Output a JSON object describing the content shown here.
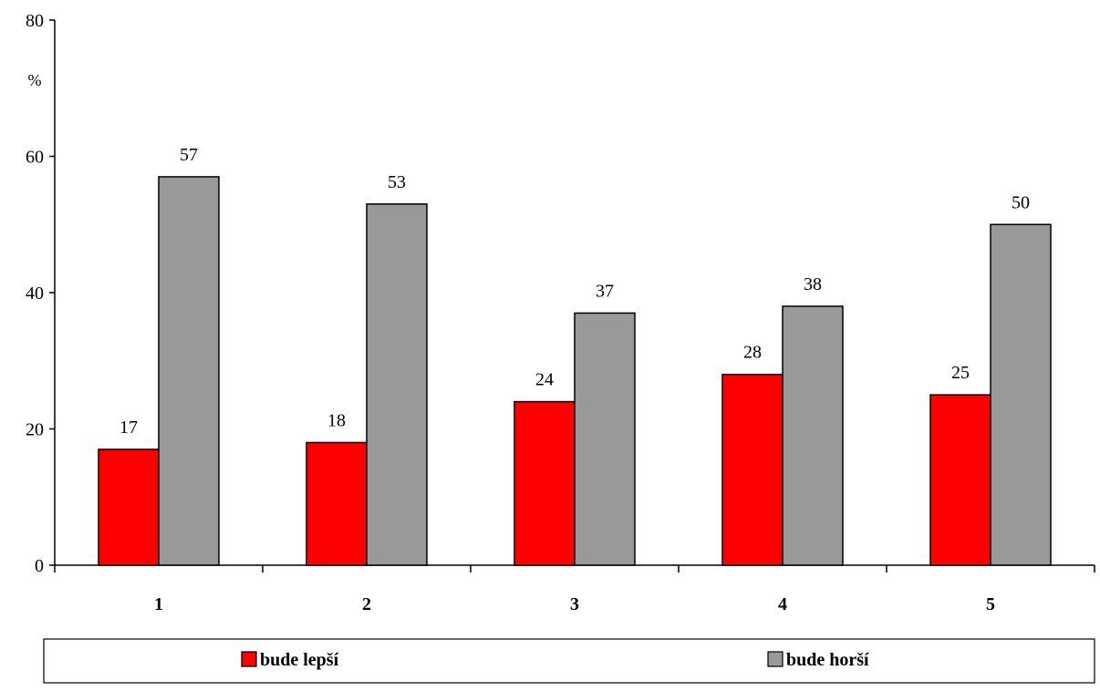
{
  "chart_data": {
    "type": "bar",
    "categories": [
      "1",
      "2",
      "3",
      "4",
      "5"
    ],
    "series": [
      {
        "name": "bude lepší",
        "values": [
          17,
          18,
          24,
          28,
          25
        ],
        "color": "#ff0000"
      },
      {
        "name": "bude horší",
        "values": [
          57,
          53,
          37,
          38,
          50
        ],
        "color": "#999999"
      }
    ],
    "ylabel": "%",
    "ylim": [
      0,
      80
    ],
    "yticks": [
      0,
      20,
      40,
      60,
      80
    ],
    "grid": false,
    "legend_position": "bottom"
  }
}
